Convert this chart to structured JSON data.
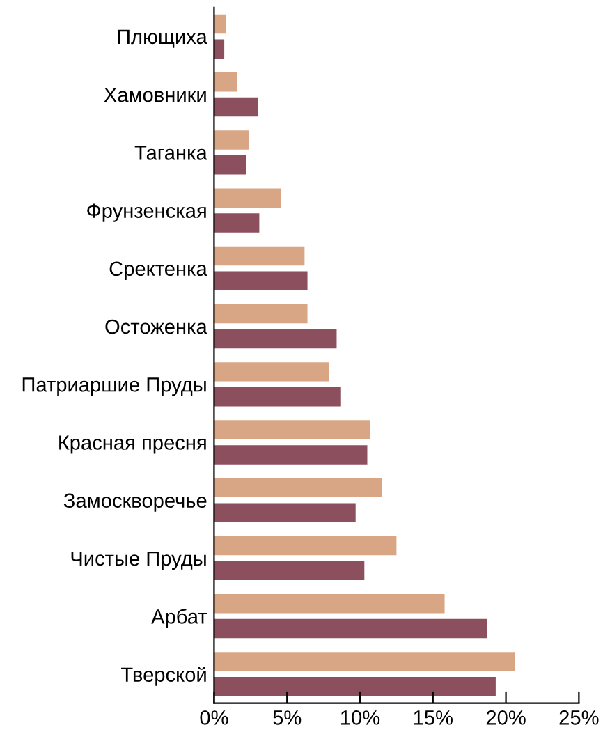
{
  "chart_data": {
    "type": "bar",
    "orientation": "horizontal",
    "categories": [
      "Плющиха",
      "Хамовники",
      "Таганка",
      "Фрунзенская",
      "Сректенка",
      "Остоженка",
      "Патриаршие Пруды",
      "Красная пресня",
      "Замоскворечье",
      "Чистые Пруды",
      "Арбат",
      "Тверской"
    ],
    "series": [
      {
        "color": "#d8a684",
        "values": [
          0.8,
          1.6,
          2.4,
          4.6,
          6.2,
          6.4,
          7.9,
          10.7,
          11.5,
          12.5,
          15.8,
          20.6
        ]
      },
      {
        "color": "#8c4f5e",
        "values": [
          0.7,
          3.0,
          2.2,
          3.1,
          6.4,
          8.4,
          8.7,
          10.5,
          9.7,
          10.3,
          18.7,
          19.3
        ]
      }
    ],
    "xlim": [
      0,
      25
    ],
    "xticks": [
      {
        "value": 0,
        "label": "0%"
      },
      {
        "value": 5,
        "label": "5%"
      },
      {
        "value": 10,
        "label": "10%"
      },
      {
        "value": 15,
        "label": "15%"
      },
      {
        "value": 20,
        "label": "20%"
      },
      {
        "value": 25,
        "label": "25%"
      }
    ],
    "grid": false,
    "legend": false
  }
}
